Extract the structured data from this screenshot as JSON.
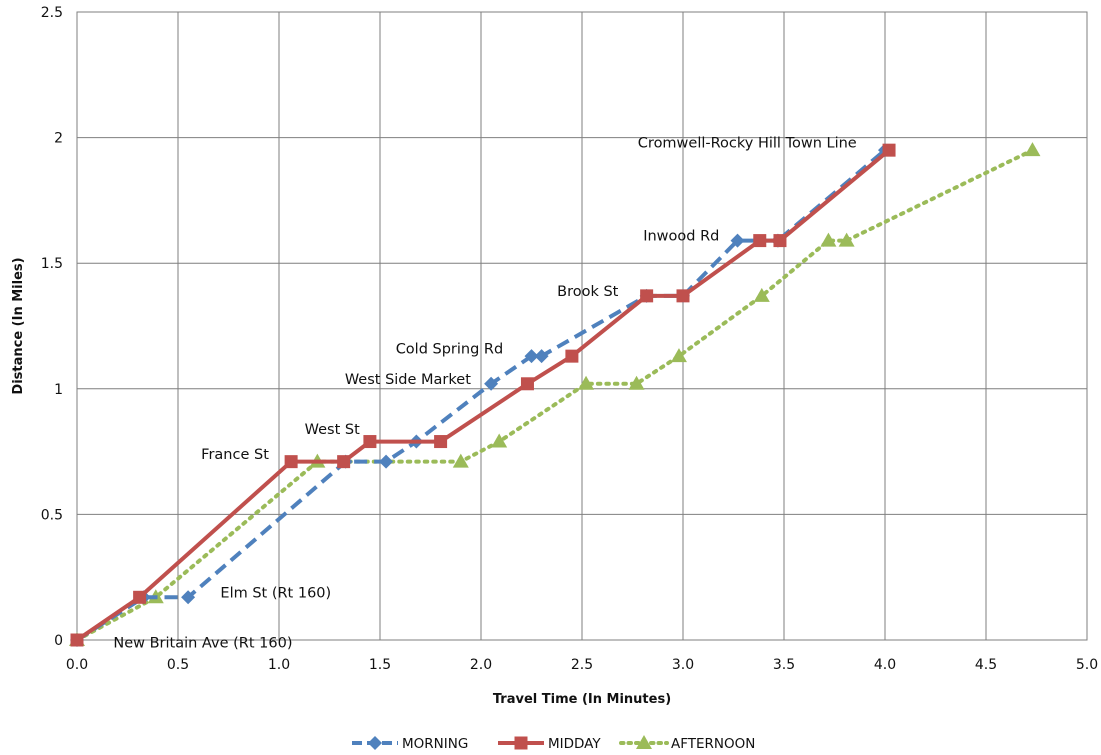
{
  "chart_data": {
    "type": "line",
    "title": "",
    "xlabel": "Travel Time (In Minutes)",
    "ylabel": "Distance (In Miles)",
    "xlim": [
      0,
      5
    ],
    "ylim": [
      0,
      2.5
    ],
    "x_ticks": [
      "0.0",
      "0.5",
      "1.0",
      "1.5",
      "2.0",
      "2.5",
      "3.0",
      "3.5",
      "4.0",
      "4.5",
      "5.0"
    ],
    "y_ticks": [
      "0",
      "0.5",
      "1",
      "1.5",
      "2",
      "2.5"
    ],
    "grid": true,
    "legend_position": "bottom",
    "series": [
      {
        "name": "MORNING",
        "color": "#4f81bd",
        "line_style": "dashed",
        "marker": "diamond",
        "points": [
          [
            0,
            0
          ],
          [
            0.33,
            0.17
          ],
          [
            0.55,
            0.17
          ],
          [
            1.33,
            0.71
          ],
          [
            1.53,
            0.71
          ],
          [
            1.68,
            0.79
          ],
          [
            2.05,
            1.02
          ],
          [
            2.25,
            1.13
          ],
          [
            2.3,
            1.13
          ],
          [
            2.82,
            1.37
          ],
          [
            3.0,
            1.37
          ],
          [
            3.27,
            1.59
          ],
          [
            3.47,
            1.59
          ],
          [
            4.0,
            1.95
          ]
        ]
      },
      {
        "name": "MIDDAY",
        "color": "#c0504d",
        "line_style": "solid",
        "marker": "square",
        "points": [
          [
            0,
            0
          ],
          [
            0.31,
            0.17
          ],
          [
            1.06,
            0.71
          ],
          [
            1.32,
            0.71
          ],
          [
            1.45,
            0.79
          ],
          [
            1.8,
            0.79
          ],
          [
            2.23,
            1.02
          ],
          [
            2.45,
            1.13
          ],
          [
            2.82,
            1.37
          ],
          [
            3.0,
            1.37
          ],
          [
            3.38,
            1.59
          ],
          [
            3.48,
            1.59
          ],
          [
            4.02,
            1.95
          ]
        ]
      },
      {
        "name": "AFTERNOON",
        "color": "#9bbb59",
        "line_style": "dotted",
        "marker": "triangle",
        "points": [
          [
            0,
            0
          ],
          [
            0.39,
            0.17
          ],
          [
            1.19,
            0.71
          ],
          [
            1.9,
            0.71
          ],
          [
            2.09,
            0.79
          ],
          [
            2.52,
            1.02
          ],
          [
            2.77,
            1.02
          ],
          [
            2.98,
            1.13
          ],
          [
            3.39,
            1.37
          ],
          [
            3.72,
            1.59
          ],
          [
            3.81,
            1.59
          ],
          [
            4.73,
            1.95
          ]
        ]
      }
    ],
    "annotations": [
      {
        "text": "New Britain Ave (Rt 160)",
        "x": 0.18,
        "y": -0.03,
        "anchor": "start"
      },
      {
        "text": "Elm St (Rt 160)",
        "x": 0.71,
        "y": 0.17,
        "anchor": "start"
      },
      {
        "text": "France St",
        "x": 0.95,
        "y": 0.72,
        "anchor": "end"
      },
      {
        "text": "West St",
        "x": 1.4,
        "y": 0.82,
        "anchor": "end"
      },
      {
        "text": "West Side Market",
        "x": 1.95,
        "y": 1.02,
        "anchor": "end"
      },
      {
        "text": "Cold Spring Rd",
        "x": 2.11,
        "y": 1.14,
        "anchor": "end"
      },
      {
        "text": "Brook St",
        "x": 2.68,
        "y": 1.37,
        "anchor": "end"
      },
      {
        "text": "Inwood Rd",
        "x": 3.18,
        "y": 1.59,
        "anchor": "end"
      },
      {
        "text": "Cromwell-Rocky Hill Town Line",
        "x": 3.86,
        "y": 1.96,
        "anchor": "end"
      }
    ]
  }
}
